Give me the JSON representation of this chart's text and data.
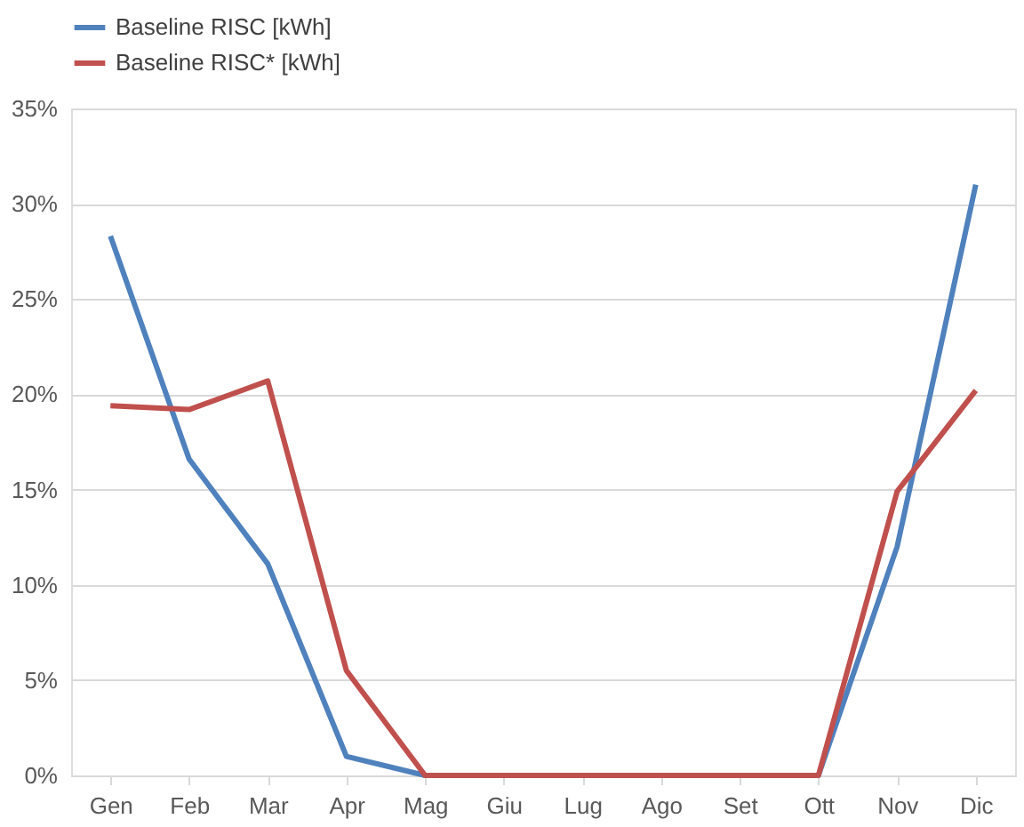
{
  "chart_data": {
    "type": "line",
    "categories": [
      "Gen",
      "Feb",
      "Mar",
      "Apr",
      "Mag",
      "Giu",
      "Lug",
      "Ago",
      "Set",
      "Ott",
      "Nov",
      "Dic"
    ],
    "series": [
      {
        "name": "Baseline RISC [kWh]",
        "color": "#4f81bd",
        "values": [
          28.3,
          16.6,
          11.1,
          1.0,
          0,
          0,
          0,
          0,
          0,
          0,
          12.0,
          31.0
        ]
      },
      {
        "name": "Baseline RISC* [kWh]",
        "color": "#c0504d",
        "values": [
          19.4,
          19.2,
          20.7,
          5.5,
          0,
          0,
          0,
          0,
          0,
          0,
          14.9,
          20.2
        ]
      }
    ],
    "ylim": [
      0,
      35
    ],
    "yticks": [
      {
        "value": 0,
        "label": "0%"
      },
      {
        "value": 5,
        "label": "5%"
      },
      {
        "value": 10,
        "label": "10%"
      },
      {
        "value": 15,
        "label": "15%"
      },
      {
        "value": 20,
        "label": "20%"
      },
      {
        "value": 25,
        "label": "25%"
      },
      {
        "value": 30,
        "label": "30%"
      },
      {
        "value": 35,
        "label": "35%"
      }
    ],
    "grid": "y",
    "legend": "top",
    "marker": "none",
    "line_style": "solid"
  }
}
